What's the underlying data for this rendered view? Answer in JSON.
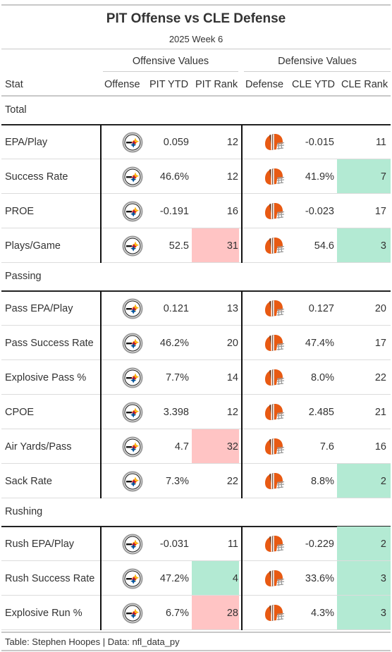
{
  "title": "PIT Offense vs CLE Defense",
  "subtitle": "2025 Week 6",
  "spanners": {
    "offense": "Offensive Values",
    "defense": "Defensive Values"
  },
  "columns": {
    "stat": "Stat",
    "offense": "Offense",
    "pit_ytd": "PIT YTD",
    "pit_rank": "PIT Rank",
    "defense": "Defense",
    "cle_ytd": "CLE YTD",
    "cle_rank": "CLE Rank"
  },
  "logos": {
    "offense": "steelers-logo-icon",
    "defense": "browns-helmet-icon"
  },
  "colors": {
    "good": "#b3ead3",
    "bad": "#ffc4c4",
    "steelers_gold": "#FFB612",
    "steelers_red": "#C8102E",
    "steelers_blue": "#00539B",
    "browns_orange": "#E85A13",
    "browns_brown": "#4A2F1F"
  },
  "groups": [
    {
      "name": "Total",
      "rows": [
        {
          "stat": "EPA/Play",
          "pit_ytd": "0.059",
          "pit_rank": "12",
          "pit_highlight": "",
          "cle_ytd": "-0.015",
          "cle_rank": "11",
          "cle_highlight": ""
        },
        {
          "stat": "Success Rate",
          "pit_ytd": "46.6%",
          "pit_rank": "12",
          "pit_highlight": "",
          "cle_ytd": "41.9%",
          "cle_rank": "7",
          "cle_highlight": "good"
        },
        {
          "stat": "PROE",
          "pit_ytd": "-0.191",
          "pit_rank": "16",
          "pit_highlight": "",
          "cle_ytd": "-0.023",
          "cle_rank": "17",
          "cle_highlight": ""
        },
        {
          "stat": "Plays/Game",
          "pit_ytd": "52.5",
          "pit_rank": "31",
          "pit_highlight": "bad",
          "cle_ytd": "54.6",
          "cle_rank": "3",
          "cle_highlight": "good"
        }
      ]
    },
    {
      "name": "Passing",
      "rows": [
        {
          "stat": "Pass EPA/Play",
          "pit_ytd": "0.121",
          "pit_rank": "13",
          "pit_highlight": "",
          "cle_ytd": "0.127",
          "cle_rank": "20",
          "cle_highlight": ""
        },
        {
          "stat": "Pass Success Rate",
          "pit_ytd": "46.2%",
          "pit_rank": "20",
          "pit_highlight": "",
          "cle_ytd": "47.4%",
          "cle_rank": "17",
          "cle_highlight": ""
        },
        {
          "stat": "Explosive Pass %",
          "pit_ytd": "7.7%",
          "pit_rank": "14",
          "pit_highlight": "",
          "cle_ytd": "8.0%",
          "cle_rank": "22",
          "cle_highlight": ""
        },
        {
          "stat": "CPOE",
          "pit_ytd": "3.398",
          "pit_rank": "12",
          "pit_highlight": "",
          "cle_ytd": "2.485",
          "cle_rank": "21",
          "cle_highlight": ""
        },
        {
          "stat": "Air Yards/Pass",
          "pit_ytd": "4.7",
          "pit_rank": "32",
          "pit_highlight": "bad",
          "cle_ytd": "7.6",
          "cle_rank": "16",
          "cle_highlight": ""
        },
        {
          "stat": "Sack Rate",
          "pit_ytd": "7.3%",
          "pit_rank": "22",
          "pit_highlight": "",
          "cle_ytd": "8.8%",
          "cle_rank": "2",
          "cle_highlight": "good"
        }
      ]
    },
    {
      "name": "Rushing",
      "rows": [
        {
          "stat": "Rush EPA/Play",
          "pit_ytd": "-0.031",
          "pit_rank": "11",
          "pit_highlight": "",
          "cle_ytd": "-0.229",
          "cle_rank": "2",
          "cle_highlight": "good"
        },
        {
          "stat": "Rush Success Rate",
          "pit_ytd": "47.2%",
          "pit_rank": "4",
          "pit_highlight": "good",
          "cle_ytd": "33.6%",
          "cle_rank": "3",
          "cle_highlight": "good"
        },
        {
          "stat": "Explosive Run %",
          "pit_ytd": "6.7%",
          "pit_rank": "28",
          "pit_highlight": "bad",
          "cle_ytd": "4.3%",
          "cle_rank": "3",
          "cle_highlight": "good"
        }
      ]
    }
  ],
  "source": "Table: Stephen Hoopes | Data: nfl_data_py"
}
